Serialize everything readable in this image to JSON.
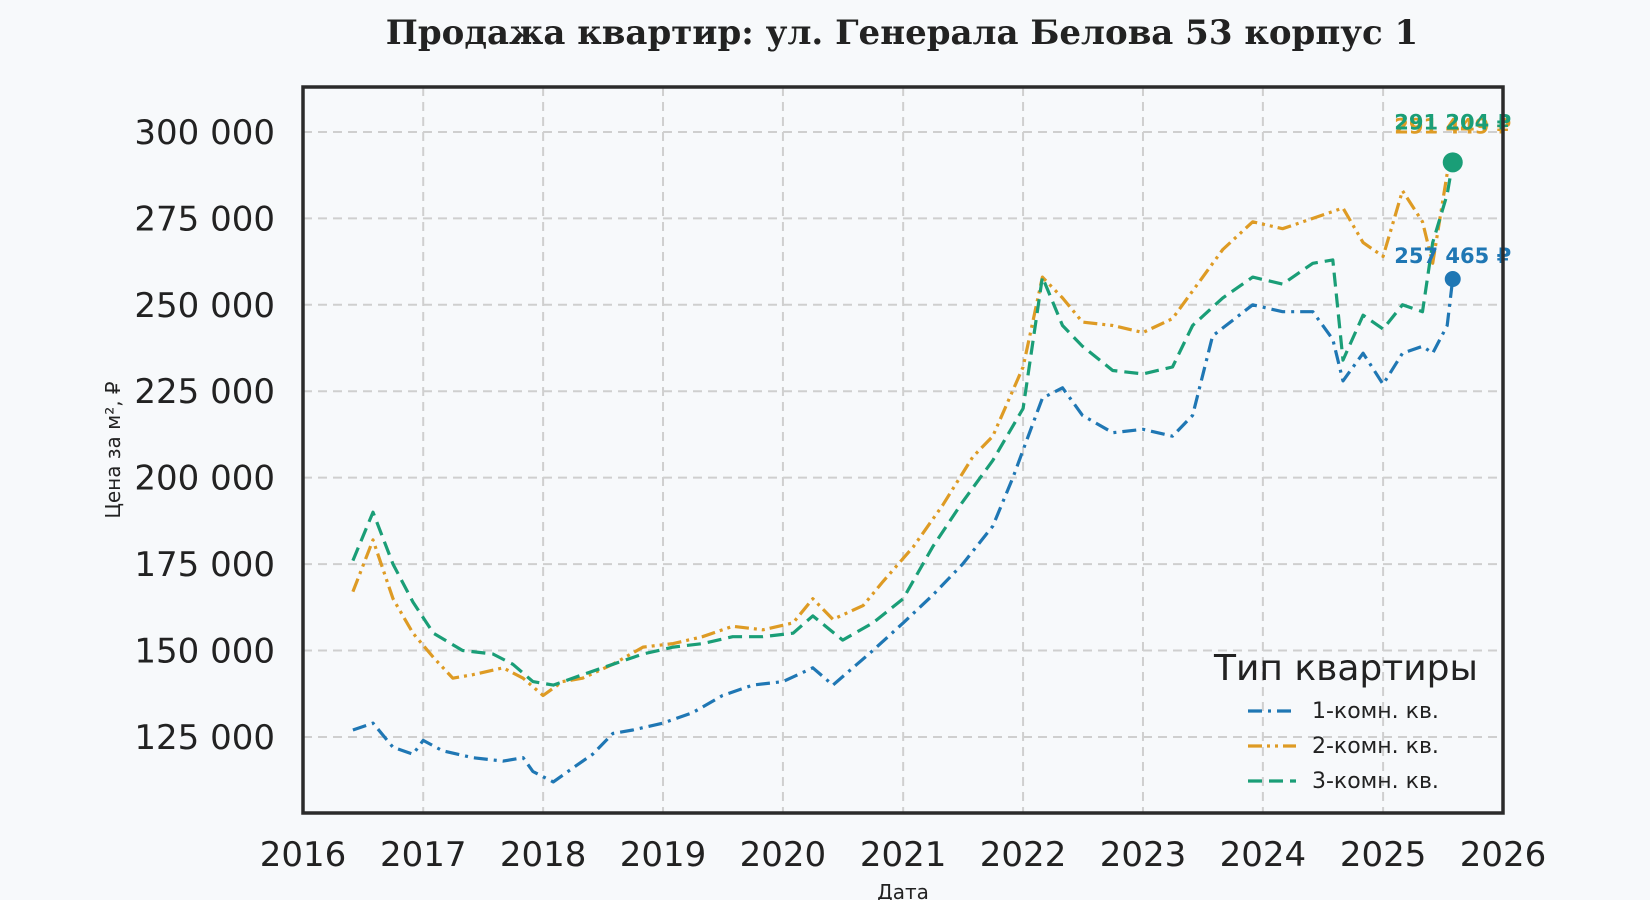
{
  "chart_data": {
    "type": "line",
    "title": "Продажа квартир: ул. Генерала Белова 53 корпус 1",
    "xlabel": "Дата",
    "ylabel": "Цена за м², ₽",
    "xlim": [
      "2016-01-01",
      "2026-01-01"
    ],
    "ylim": [
      103000,
      313000
    ],
    "x_ticks": [
      "2016",
      "2017",
      "2018",
      "2019",
      "2020",
      "2021",
      "2022",
      "2023",
      "2024",
      "2025",
      "2026"
    ],
    "y_ticks": [
      125000,
      150000,
      175000,
      200000,
      225000,
      250000,
      275000,
      300000
    ],
    "y_tick_labels": [
      "125 000",
      "150 000",
      "175 000",
      "200 000",
      "225 000",
      "250 000",
      "275 000",
      "300 000"
    ],
    "grid": true,
    "legend": {
      "title": "Тип квартиры",
      "placement": "lower-right"
    },
    "series": [
      {
        "name": "1-комн. кв.",
        "color": "#1f77b4",
        "dash": "dashdot",
        "points": [
          [
            "2016-06-01",
            127000
          ],
          [
            "2016-08-01",
            129000
          ],
          [
            "2016-10-01",
            122000
          ],
          [
            "2016-12-01",
            120000
          ],
          [
            "2017-01-01",
            124000
          ],
          [
            "2017-03-01",
            121000
          ],
          [
            "2017-06-01",
            119000
          ],
          [
            "2017-09-01",
            118000
          ],
          [
            "2017-11-01",
            119000
          ],
          [
            "2017-12-01",
            115000
          ],
          [
            "2018-02-01",
            112000
          ],
          [
            "2018-04-01",
            116000
          ],
          [
            "2018-06-01",
            120000
          ],
          [
            "2018-08-01",
            126000
          ],
          [
            "2018-10-01",
            127000
          ],
          [
            "2019-01-01",
            129000
          ],
          [
            "2019-04-01",
            132000
          ],
          [
            "2019-07-01",
            137000
          ],
          [
            "2019-10-01",
            140000
          ],
          [
            "2020-01-01",
            141000
          ],
          [
            "2020-04-01",
            145000
          ],
          [
            "2020-06-01",
            140000
          ],
          [
            "2020-08-01",
            145000
          ],
          [
            "2020-10-01",
            150000
          ],
          [
            "2021-01-01",
            158000
          ],
          [
            "2021-04-01",
            166000
          ],
          [
            "2021-07-01",
            175000
          ],
          [
            "2021-10-01",
            186000
          ],
          [
            "2021-12-01",
            200000
          ],
          [
            "2022-01-01",
            208000
          ],
          [
            "2022-03-01",
            223000
          ],
          [
            "2022-05-01",
            226000
          ],
          [
            "2022-07-01",
            218000
          ],
          [
            "2022-10-01",
            213000
          ],
          [
            "2023-01-01",
            214000
          ],
          [
            "2023-04-01",
            212000
          ],
          [
            "2023-06-01",
            218000
          ],
          [
            "2023-08-01",
            241000
          ],
          [
            "2023-12-01",
            250000
          ],
          [
            "2024-03-01",
            248000
          ],
          [
            "2024-06-01",
            248000
          ],
          [
            "2024-08-01",
            240000
          ],
          [
            "2024-09-01",
            228000
          ],
          [
            "2024-11-01",
            236000
          ],
          [
            "2025-01-01",
            227000
          ],
          [
            "2025-03-01",
            236000
          ],
          [
            "2025-05-01",
            238000
          ],
          [
            "2025-06-01",
            236000
          ],
          [
            "2025-07-15",
            244000
          ],
          [
            "2025-08-01",
            257465
          ]
        ]
      },
      {
        "name": "2-комн. кв.",
        "color": "#de9b24",
        "dash": "dashdotdot",
        "points": [
          [
            "2016-06-01",
            167000
          ],
          [
            "2016-08-01",
            182000
          ],
          [
            "2016-10-01",
            165000
          ],
          [
            "2016-12-01",
            155000
          ],
          [
            "2017-02-01",
            148000
          ],
          [
            "2017-04-01",
            142000
          ],
          [
            "2017-06-01",
            143000
          ],
          [
            "2017-09-01",
            145000
          ],
          [
            "2017-11-01",
            142000
          ],
          [
            "2018-01-01",
            137000
          ],
          [
            "2018-03-01",
            141000
          ],
          [
            "2018-05-01",
            142000
          ],
          [
            "2018-08-01",
            146000
          ],
          [
            "2018-11-01",
            151000
          ],
          [
            "2019-02-01",
            152000
          ],
          [
            "2019-05-01",
            154000
          ],
          [
            "2019-08-01",
            157000
          ],
          [
            "2019-11-01",
            156000
          ],
          [
            "2020-02-01",
            158000
          ],
          [
            "2020-04-01",
            165000
          ],
          [
            "2020-06-01",
            159000
          ],
          [
            "2020-09-01",
            163000
          ],
          [
            "2020-11-01",
            170000
          ],
          [
            "2021-02-01",
            180000
          ],
          [
            "2021-05-01",
            192000
          ],
          [
            "2021-08-01",
            206000
          ],
          [
            "2021-10-01",
            212000
          ],
          [
            "2022-01-01",
            232000
          ],
          [
            "2022-03-01",
            258000
          ],
          [
            "2022-05-01",
            252000
          ],
          [
            "2022-07-01",
            245000
          ],
          [
            "2022-10-01",
            244000
          ],
          [
            "2023-01-01",
            242000
          ],
          [
            "2023-04-01",
            246000
          ],
          [
            "2023-06-01",
            254000
          ],
          [
            "2023-09-01",
            266000
          ],
          [
            "2023-12-01",
            274000
          ],
          [
            "2024-03-01",
            272000
          ],
          [
            "2024-06-01",
            275000
          ],
          [
            "2024-09-01",
            278000
          ],
          [
            "2024-11-01",
            268000
          ],
          [
            "2025-01-01",
            264000
          ],
          [
            "2025-03-01",
            283000
          ],
          [
            "2025-05-01",
            274000
          ],
          [
            "2025-06-01",
            262000
          ],
          [
            "2025-07-15",
            288000
          ],
          [
            "2025-08-01",
            291449
          ]
        ]
      },
      {
        "name": "3-комн. кв.",
        "color": "#1a9e77",
        "dash": "dash",
        "points": [
          [
            "2016-06-01",
            176000
          ],
          [
            "2016-08-01",
            190000
          ],
          [
            "2016-10-01",
            175000
          ],
          [
            "2016-12-01",
            164000
          ],
          [
            "2017-02-01",
            155000
          ],
          [
            "2017-05-01",
            150000
          ],
          [
            "2017-08-01",
            149000
          ],
          [
            "2017-10-01",
            146000
          ],
          [
            "2017-12-01",
            141000
          ],
          [
            "2018-02-01",
            140000
          ],
          [
            "2018-05-01",
            143000
          ],
          [
            "2018-08-01",
            146000
          ],
          [
            "2018-11-01",
            149000
          ],
          [
            "2019-02-01",
            151000
          ],
          [
            "2019-05-01",
            152000
          ],
          [
            "2019-08-01",
            154000
          ],
          [
            "2019-11-01",
            154000
          ],
          [
            "2020-02-01",
            155000
          ],
          [
            "2020-04-01",
            160000
          ],
          [
            "2020-07-01",
            153000
          ],
          [
            "2020-10-01",
            158000
          ],
          [
            "2021-01-01",
            165000
          ],
          [
            "2021-04-01",
            180000
          ],
          [
            "2021-07-01",
            193000
          ],
          [
            "2021-10-01",
            205000
          ],
          [
            "2022-01-01",
            220000
          ],
          [
            "2022-03-01",
            258000
          ],
          [
            "2022-05-01",
            244000
          ],
          [
            "2022-07-01",
            238000
          ],
          [
            "2022-10-01",
            231000
          ],
          [
            "2023-01-01",
            230000
          ],
          [
            "2023-04-01",
            232000
          ],
          [
            "2023-06-01",
            244000
          ],
          [
            "2023-09-01",
            252000
          ],
          [
            "2023-12-01",
            258000
          ],
          [
            "2024-03-01",
            256000
          ],
          [
            "2024-06-01",
            262000
          ],
          [
            "2024-08-01",
            263000
          ],
          [
            "2024-09-01",
            234000
          ],
          [
            "2024-11-01",
            247000
          ],
          [
            "2025-01-01",
            243000
          ],
          [
            "2025-03-01",
            250000
          ],
          [
            "2025-05-01",
            248000
          ],
          [
            "2025-06-01",
            268000
          ],
          [
            "2025-07-15",
            282000
          ],
          [
            "2025-08-01",
            291204
          ]
        ]
      }
    ],
    "annotations": [
      {
        "series": "1-комн. кв.",
        "date": "2025-08-01",
        "value": 257465,
        "text": "257 465 ₽",
        "color": "#1f77b4"
      },
      {
        "series": "2-комн. кв.",
        "date": "2025-08-01",
        "value": 291449,
        "text": "291 449 ₽",
        "color": "#de9b24"
      },
      {
        "series": "3-комн. кв.",
        "date": "2025-08-01",
        "value": 291204,
        "text": "291 204 ₽",
        "color": "#1a9e77"
      }
    ]
  }
}
